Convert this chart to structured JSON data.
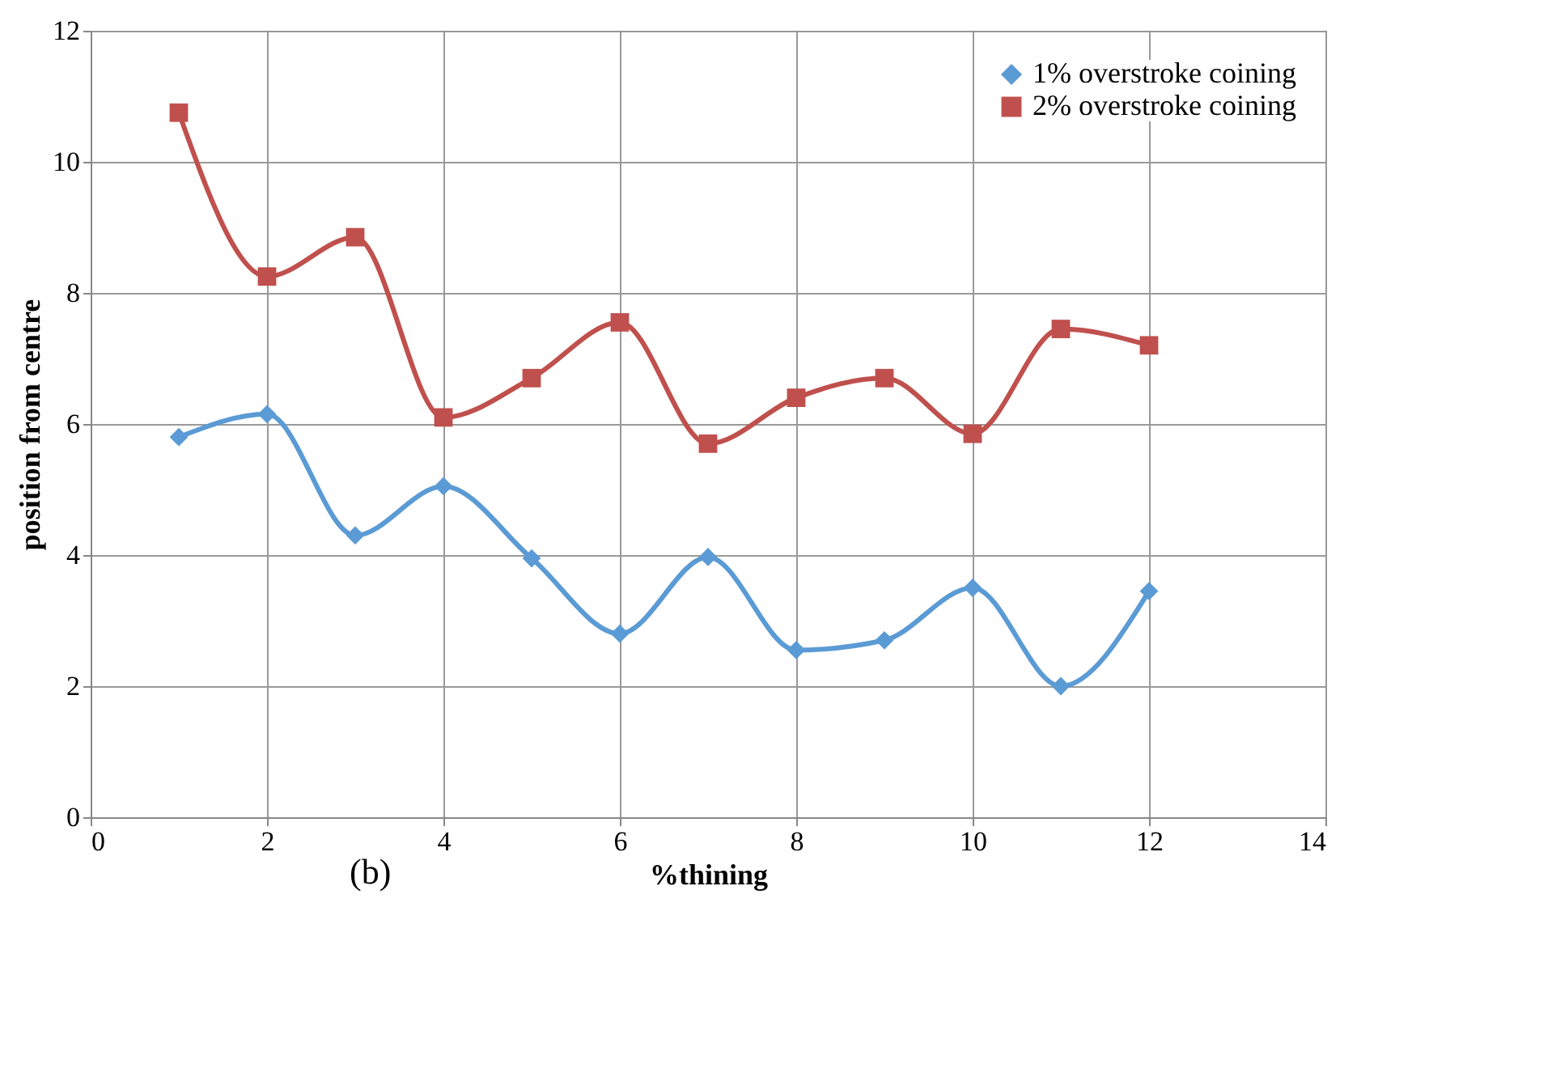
{
  "chart_data": {
    "type": "line",
    "xlabel": "%thining",
    "ylabel": "position from centre",
    "x": [
      1,
      2,
      3,
      4,
      5,
      6,
      7,
      8,
      9,
      10,
      11,
      12
    ],
    "series": [
      {
        "name": "1% overstroke coining",
        "color": "#5b9bd5",
        "marker": "diamond",
        "values": [
          5.8,
          6.15,
          4.3,
          5.05,
          3.95,
          2.8,
          3.97,
          2.55,
          2.7,
          3.5,
          2.0,
          3.45
        ]
      },
      {
        "name": "2% overstroke coining",
        "color": "#c0504d",
        "marker": "square",
        "values": [
          10.75,
          8.25,
          8.85,
          6.1,
          6.7,
          7.55,
          5.7,
          6.4,
          6.7,
          5.85,
          7.45,
          7.2
        ]
      }
    ],
    "xlim": [
      0,
      14
    ],
    "xticks": [
      0,
      2,
      4,
      6,
      8,
      10,
      12,
      14
    ],
    "ylim": [
      0,
      12
    ],
    "yticks": [
      0,
      2,
      4,
      6,
      8,
      10,
      12
    ],
    "grid": true,
    "legend": "top right",
    "line_style": "solid",
    "annotations": [
      "(b)"
    ]
  }
}
